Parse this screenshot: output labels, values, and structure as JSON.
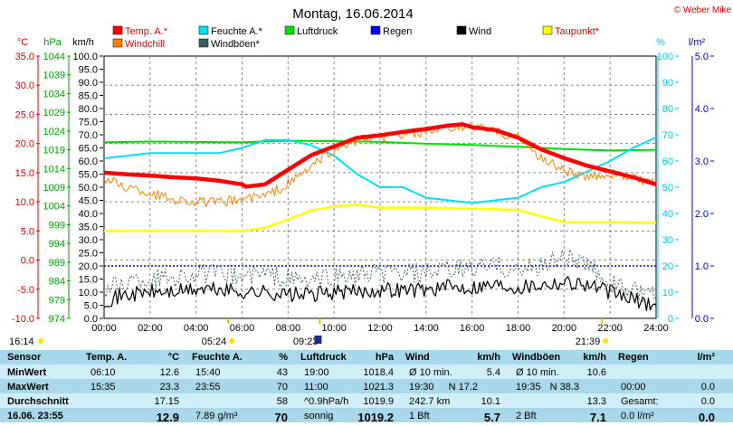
{
  "chart_data": {
    "type": "line",
    "title": "Montag, 16.06.2014",
    "copyright": "© Weber Mike",
    "x_ticks": [
      "00:00",
      "02:00",
      "04:00",
      "06:00",
      "08:00",
      "10:00",
      "12:00",
      "14:00",
      "16:00",
      "18:00",
      "20:00",
      "22:00",
      "24:00"
    ],
    "x_range": [
      0,
      24
    ],
    "axes": {
      "temp": {
        "unit": "°C",
        "color": "#e00000",
        "ticks": [
          "35.0",
          "30.0",
          "25.0",
          "20.0",
          "15.0",
          "10.0",
          "5.0",
          "0.0",
          "-5.0",
          "-10.0"
        ],
        "range": [
          -10,
          35
        ]
      },
      "pressure": {
        "unit": "hPa",
        "color": "#00a000",
        "ticks": [
          "1044",
          "1039",
          "1034",
          "1029",
          "1024",
          "1019",
          "1014",
          "1009",
          "1004",
          "999",
          "994",
          "989",
          "984",
          "979",
          "974"
        ],
        "range": [
          974,
          1044
        ]
      },
      "wind": {
        "unit": "km/h",
        "color": "#000000",
        "ticks": [
          "100.0",
          "95.0",
          "90.0",
          "85.0",
          "80.0",
          "75.0",
          "70.0",
          "65.0",
          "60.0",
          "55.0",
          "50.0",
          "45.0",
          "40.0",
          "35.0",
          "30.0",
          "25.0",
          "20.0",
          "15.0",
          "10.0",
          "5.0",
          "0.0"
        ],
        "range": [
          0,
          100
        ]
      },
      "humidity": {
        "unit": "%",
        "color": "#00c8d8",
        "ticks": [
          "100",
          "90",
          "80",
          "70",
          "60",
          "50",
          "40",
          "30",
          "20",
          "10",
          "0"
        ],
        "range": [
          0,
          100
        ]
      },
      "rain": {
        "unit": "l/m²",
        "color": "#0000c0",
        "ticks": [
          "5.0",
          "4.0",
          "3.0",
          "2.0",
          "1.0",
          "0.0"
        ],
        "range": [
          0,
          5
        ]
      }
    },
    "legend": [
      {
        "label": "Temp. A.*",
        "color": "#ff0000"
      },
      {
        "label": "Feuchte A.*",
        "color": "#00e0f0"
      },
      {
        "label": "Luftdruck",
        "color": "#00e000"
      },
      {
        "label": "Regen",
        "color": "#0000ff"
      },
      {
        "label": "Wind",
        "color": "#000000"
      },
      {
        "label": "Taupunkt*",
        "color": "#ffff00"
      },
      {
        "label": "Windchill",
        "color": "#ff8000"
      },
      {
        "label": "Windböen*",
        "color": "#406060"
      }
    ],
    "series": [
      {
        "name": "Temp. A.*",
        "axis": "temp",
        "color": "#ff0000",
        "x": [
          0,
          1,
          2,
          3,
          4,
          5,
          6,
          6.17,
          7,
          8,
          9,
          10,
          11,
          12,
          13,
          14,
          15,
          15.58,
          16,
          17,
          18,
          19,
          20,
          21,
          22,
          23,
          24
        ],
        "y": [
          15.0,
          14.7,
          14.5,
          14.2,
          14.0,
          13.6,
          13.0,
          12.6,
          13.0,
          15.5,
          18.0,
          19.5,
          21.0,
          21.4,
          22.0,
          22.5,
          23.1,
          23.3,
          22.8,
          22.3,
          21.0,
          19.0,
          17.5,
          16.2,
          15.2,
          14.2,
          13.0
        ]
      },
      {
        "name": "Windchill",
        "axis": "temp",
        "color": "#ff8000",
        "x": [
          0,
          1,
          2,
          3,
          4,
          5,
          6,
          7,
          8,
          9,
          10,
          11,
          12,
          13,
          14,
          15,
          16,
          17,
          18,
          19,
          20,
          21,
          22,
          23,
          24
        ],
        "y": [
          14.0,
          12.5,
          11.5,
          10.5,
          10.0,
          9.8,
          10.5,
          11.0,
          13.0,
          16.0,
          19.0,
          20.5,
          21.0,
          21.5,
          22.0,
          22.5,
          23.0,
          22.0,
          21.0,
          17.5,
          15.5,
          14.0,
          15.0,
          14.0,
          13.0
        ]
      },
      {
        "name": "Feuchte A.*",
        "axis": "humidity",
        "color": "#00e0f0",
        "x": [
          0,
          1,
          2,
          3,
          4,
          5,
          6,
          7,
          8,
          9,
          10,
          11,
          12,
          13,
          14,
          15,
          16,
          17,
          18,
          19,
          20,
          21,
          22,
          23,
          24
        ],
        "y": [
          61,
          62,
          63,
          63,
          63,
          63,
          65,
          68,
          68,
          66,
          62,
          55,
          50,
          50,
          46,
          45,
          44,
          45,
          46,
          50,
          52,
          56,
          60,
          65,
          69
        ]
      },
      {
        "name": "Luftdruck",
        "axis": "pressure",
        "color": "#00e000",
        "x": [
          0,
          2,
          4,
          6,
          8,
          10,
          12,
          14,
          16,
          18,
          20,
          22,
          24
        ],
        "y": [
          1021.0,
          1021.2,
          1021.1,
          1021.0,
          1021.4,
          1021.3,
          1021.1,
          1020.6,
          1020.3,
          1019.8,
          1019.2,
          1018.8,
          1019.0
        ]
      },
      {
        "name": "Taupunkt*",
        "axis": "temp",
        "color": "#ffff00",
        "x": [
          0,
          2,
          4,
          6,
          7,
          8,
          9,
          10,
          11,
          12,
          14,
          16,
          18,
          19,
          20,
          22,
          24
        ],
        "y": [
          5.0,
          5.0,
          5.0,
          5.0,
          5.5,
          7.0,
          8.5,
          9.2,
          9.5,
          9.0,
          9.0,
          8.8,
          8.6,
          7.5,
          6.5,
          6.5,
          6.4
        ]
      },
      {
        "name": "Wind",
        "axis": "wind",
        "color": "#000000",
        "x": [
          0,
          1,
          2,
          3,
          4,
          5,
          6,
          7,
          8,
          9,
          10,
          11,
          12,
          13,
          14,
          15,
          16,
          17,
          18,
          19,
          20,
          21,
          22,
          23,
          24
        ],
        "y": [
          7,
          9,
          10,
          10,
          11,
          11,
          10,
          10,
          9,
          9,
          10,
          10,
          11,
          11,
          11,
          12,
          12,
          13,
          12,
          13,
          14,
          13,
          10,
          7,
          5
        ]
      },
      {
        "name": "Windböen*",
        "axis": "wind",
        "color": "#406060",
        "x": [
          0,
          1,
          2,
          3,
          4,
          5,
          6,
          7,
          8,
          9,
          10,
          11,
          12,
          13,
          14,
          15,
          16,
          17,
          18,
          19,
          20,
          21,
          22,
          23,
          24
        ],
        "y": [
          11,
          14,
          15,
          16,
          17,
          17,
          16,
          17,
          15,
          14,
          16,
          16,
          17,
          17,
          17,
          18,
          19,
          20,
          18,
          20,
          24,
          20,
          14,
          10,
          8
        ]
      }
    ],
    "ref_line": {
      "name": "Regen",
      "axis": "rain",
      "value": 1.0,
      "color": "#0000ff"
    },
    "markers": [
      {
        "text": "16:14",
        "x_label": "left"
      },
      {
        "text": "05:24",
        "at": 5.4
      },
      {
        "text": "09:23",
        "at": 9.38
      },
      {
        "text": "21:39",
        "at": 21.65
      }
    ]
  },
  "table": {
    "headers": [
      "Sensor",
      "Temp. A.",
      "°C",
      "Feuchte A.",
      "%",
      "Luftdruck",
      "hPa",
      "Wind",
      "km/h",
      "Windböen",
      "km/h",
      "Regen",
      "l/m²"
    ],
    "rows": [
      {
        "label": "MinWert",
        "t_time": "06:10",
        "t_val": "12.6",
        "h_time": "15:40",
        "h_val": "43",
        "p_time": "19:00",
        "p_val": "1018.4",
        "w_label": "Ø 10 min.",
        "w_val": "5.4",
        "g_label": "Ø 10 min.",
        "g_val": "10.6",
        "r_label": "",
        "r_val": ""
      },
      {
        "label": "MaxWert",
        "t_time": "15:35",
        "t_val": "23.3",
        "h_time": "23:55",
        "h_val": "70",
        "p_time": "11:00",
        "p_val": "1021.3",
        "w_label": "19:30",
        "w_dir": "N 17.2",
        "w_val": "",
        "g_label": "19:35",
        "g_dir": "N 38.3",
        "g_val": "",
        "r_label": "00:00",
        "r_val": "0.0"
      },
      {
        "label": "Durchschnitt",
        "t_time": "",
        "t_val": "17.15",
        "h_time": "",
        "h_val": "58",
        "p_time": "^0.9hPa/h",
        "p_val": "1019.9",
        "w_label": "242.7 km",
        "w_val": "10.1",
        "g_label": "",
        "g_val": "13.3",
        "r_label": "Gesamt:",
        "r_val": "0.0"
      },
      {
        "label": "16.06. 23:55",
        "t_time": "",
        "t_val": "12.9",
        "h_time": "7.89 g/m³",
        "h_val": "70",
        "p_time": "sonnig",
        "p_val": "1019.2",
        "w_label": "1 Bft",
        "w_val": "5.7",
        "g_label": "2 Bft",
        "g_val": "7.1",
        "r_label": "0.0 l/m²",
        "r_val": "0.0"
      }
    ]
  }
}
